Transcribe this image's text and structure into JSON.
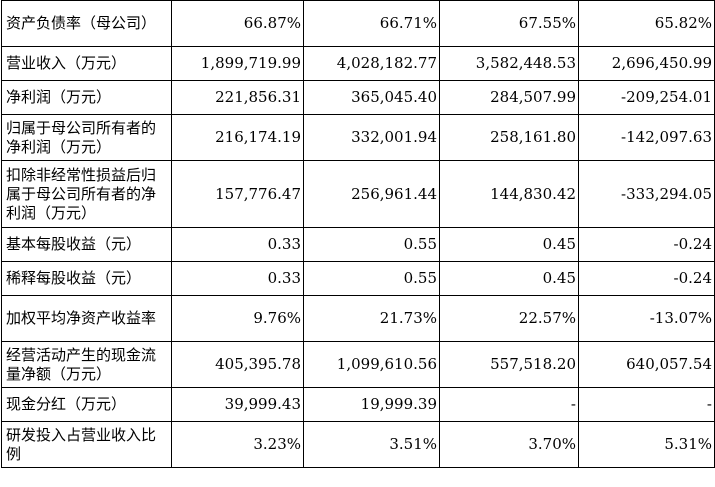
{
  "rows": [
    {
      "label": "资产负债率（母公司）",
      "values": [
        "66.87%",
        "66.71%",
        "67.55%",
        "65.82%"
      ]
    },
    {
      "label": "营业收入（万元）",
      "values": [
        "1,899,719.99",
        "4,028,182.77",
        "3,582,448.53",
        "2,696,450.99"
      ]
    },
    {
      "label": "净利润（万元）",
      "values": [
        "221,856.31",
        "365,045.40",
        "284,507.99",
        "-209,254.01"
      ]
    },
    {
      "label": "归属于母公司所有者的净利润（万元）",
      "values": [
        "216,174.19",
        "332,001.94",
        "258,161.80",
        "-142,097.63"
      ]
    },
    {
      "label": "扣除非经常性损益后归属于母公司所有者的净利润（万元）",
      "values": [
        "157,776.47",
        "256,961.44",
        "144,830.42",
        "-333,294.05"
      ]
    },
    {
      "label": "基本每股收益（元）",
      "values": [
        "0.33",
        "0.55",
        "0.45",
        "-0.24"
      ]
    },
    {
      "label": "稀释每股收益（元）",
      "values": [
        "0.33",
        "0.55",
        "0.45",
        "-0.24"
      ]
    },
    {
      "label": "加权平均净资产收益率",
      "values": [
        "9.76%",
        "21.73%",
        "22.57%",
        "-13.07%"
      ]
    },
    {
      "label": "经营活动产生的现金流量净额（万元）",
      "values": [
        "405,395.78",
        "1,099,610.56",
        "557,518.20",
        "640,057.54"
      ]
    },
    {
      "label": "现金分红（万元）",
      "values": [
        "39,999.43",
        "19,999.39",
        "-",
        "-"
      ]
    },
    {
      "label": "研发投入占营业收入比例",
      "values": [
        "3.23%",
        "3.51%",
        "3.70%",
        "5.31%"
      ]
    }
  ]
}
